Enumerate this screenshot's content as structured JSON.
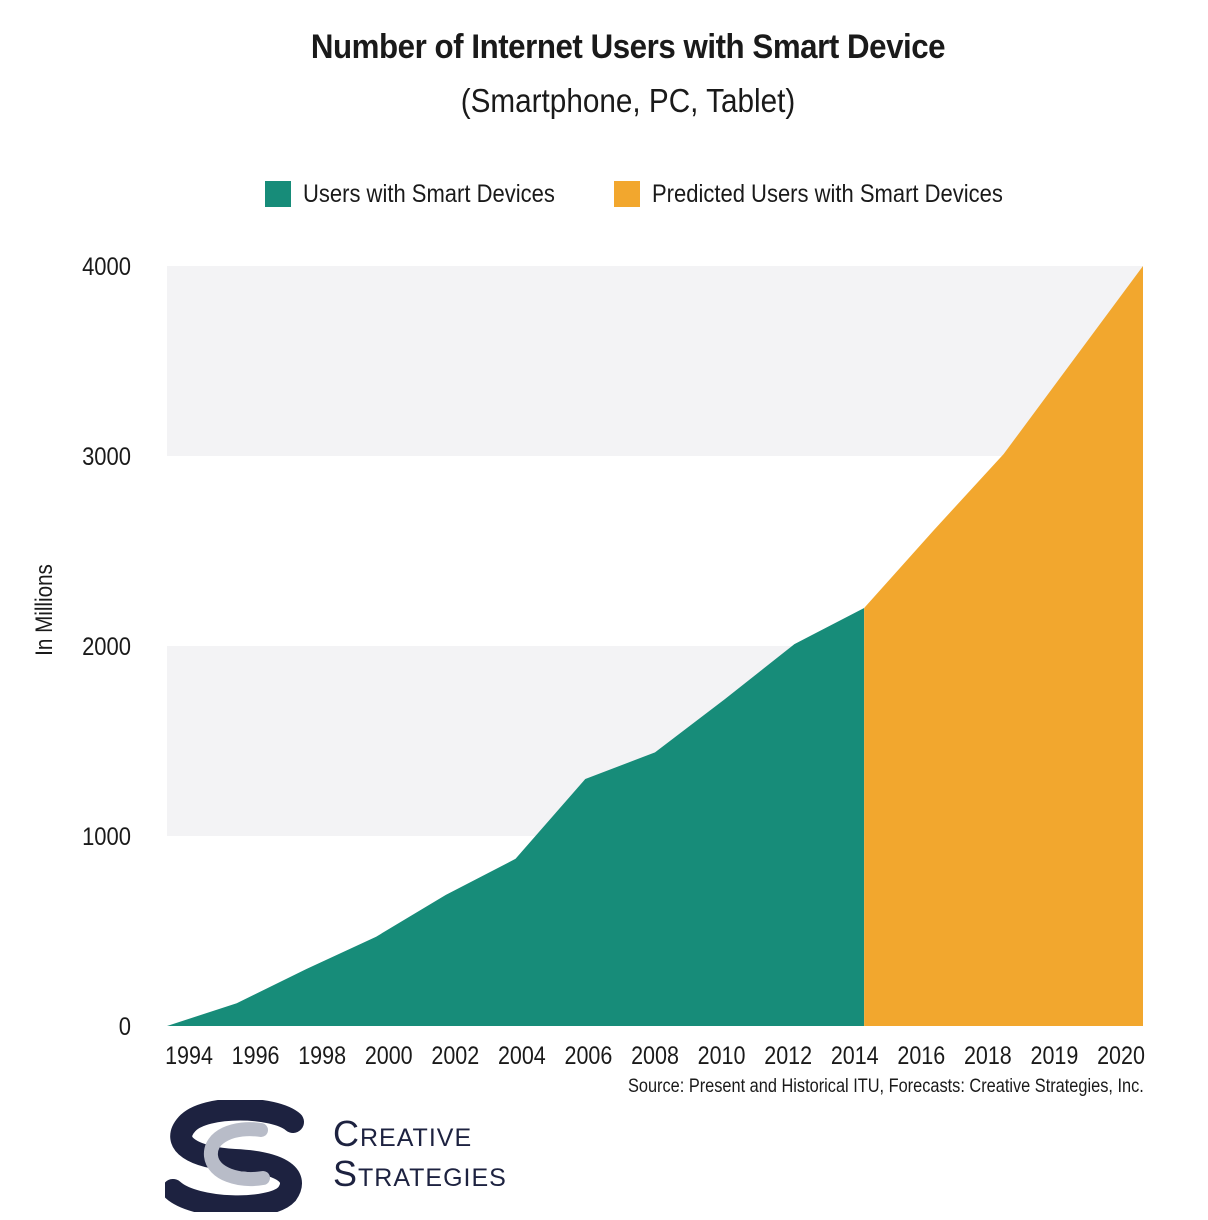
{
  "chart_data": {
    "type": "area",
    "title": "Number of Internet Users with Smart Device",
    "subtitle": "(Smartphone, PC, Tablet)",
    "xlabel": "",
    "ylabel": "In Millions",
    "ylim": [
      0,
      4000
    ],
    "yticks": [
      0,
      1000,
      2000,
      3000,
      4000
    ],
    "xtick_labels": [
      "1994",
      "1996",
      "1998",
      "2000",
      "2002",
      "2004",
      "2006",
      "2008",
      "2010",
      "2012",
      "2014",
      "2016",
      "2018",
      "2019",
      "2020"
    ],
    "grid": "alternating horizontal bands",
    "legend_position": "top",
    "series": [
      {
        "name": "Users with Smart Devices",
        "color": "#178c79",
        "points": [
          [
            1994,
            0
          ],
          [
            1996,
            120
          ],
          [
            1998,
            300
          ],
          [
            2000,
            470
          ],
          [
            2002,
            690
          ],
          [
            2004,
            880
          ],
          [
            2006,
            1300
          ],
          [
            2008,
            1440
          ],
          [
            2010,
            1720
          ],
          [
            2012,
            2010
          ],
          [
            2014,
            2200
          ]
        ]
      },
      {
        "name": "Predicted Users with Smart Devices",
        "color": "#f2a72e",
        "points": [
          [
            2014,
            2200
          ],
          [
            2016,
            2610
          ],
          [
            2018,
            3010
          ],
          [
            2020,
            4000
          ]
        ]
      }
    ],
    "source": "Source: Present and Historical ITU, Forecasts: Creative Strategies, Inc."
  },
  "logo": {
    "line1": "Creative",
    "line2": "Strategies"
  },
  "colors": {
    "band": "#f3f3f5",
    "tick_text": "#1a1a1a",
    "logo_navy": "#1d2240",
    "logo_gray": "#b8bcc8"
  }
}
